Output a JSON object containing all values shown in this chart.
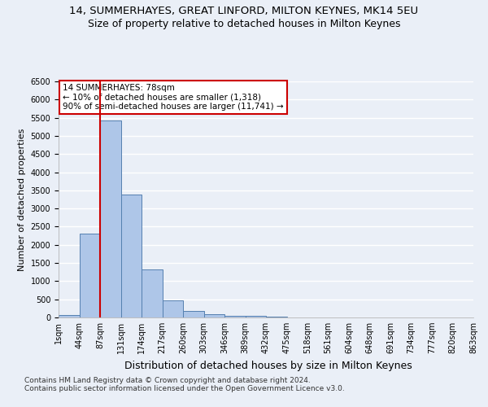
{
  "title1": "14, SUMMERHAYES, GREAT LINFORD, MILTON KEYNES, MK14 5EU",
  "title2": "Size of property relative to detached houses in Milton Keynes",
  "xlabel": "Distribution of detached houses by size in Milton Keynes",
  "ylabel": "Number of detached properties",
  "footer1": "Contains HM Land Registry data © Crown copyright and database right 2024.",
  "footer2": "Contains public sector information licensed under the Open Government Licence v3.0.",
  "bin_labels": [
    "1sqm",
    "44sqm",
    "87sqm",
    "131sqm",
    "174sqm",
    "217sqm",
    "260sqm",
    "303sqm",
    "346sqm",
    "389sqm",
    "432sqm",
    "475sqm",
    "518sqm",
    "561sqm",
    "604sqm",
    "648sqm",
    "691sqm",
    "734sqm",
    "777sqm",
    "820sqm",
    "863sqm"
  ],
  "bar_values": [
    75,
    2300,
    5420,
    3380,
    1320,
    480,
    190,
    95,
    55,
    50,
    30,
    0,
    0,
    0,
    0,
    0,
    0,
    0,
    0,
    0
  ],
  "bar_color": "#aec6e8",
  "bar_edge_color": "#5580b0",
  "vline_x": 2.0,
  "vline_color": "#cc0000",
  "annotation_text": "14 SUMMERHAYES: 78sqm\n← 10% of detached houses are smaller (1,318)\n90% of semi-detached houses are larger (11,741) →",
  "annotation_box_color": "white",
  "annotation_box_edge": "#cc0000",
  "ylim": [
    0,
    6500
  ],
  "yticks": [
    0,
    500,
    1000,
    1500,
    2000,
    2500,
    3000,
    3500,
    4000,
    4500,
    5000,
    5500,
    6000,
    6500
  ],
  "bg_color": "#eaeff7",
  "grid_color": "white",
  "title1_fontsize": 9.5,
  "title2_fontsize": 9,
  "xlabel_fontsize": 9,
  "ylabel_fontsize": 8,
  "footer_fontsize": 6.5,
  "tick_fontsize": 7,
  "annot_fontsize": 7.5
}
